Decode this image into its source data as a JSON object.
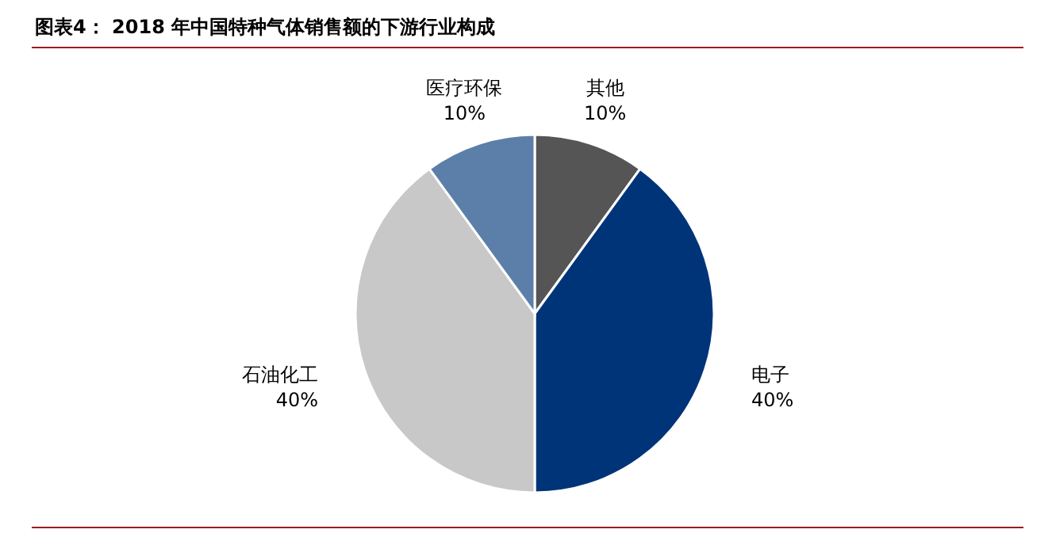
{
  "chart_data": {
    "type": "pie",
    "title": "图表4：  2018 年中国特种气体销售额的下游行业构成",
    "categories": [
      "其他",
      "电子",
      "石油化工",
      "医疗环保"
    ],
    "values": [
      10,
      40,
      40,
      10
    ],
    "value_labels": [
      "10%",
      "40%",
      "40%",
      "10%"
    ],
    "colors": [
      "#555555",
      "#003478",
      "#c8c8c8",
      "#5b7fa8"
    ]
  }
}
